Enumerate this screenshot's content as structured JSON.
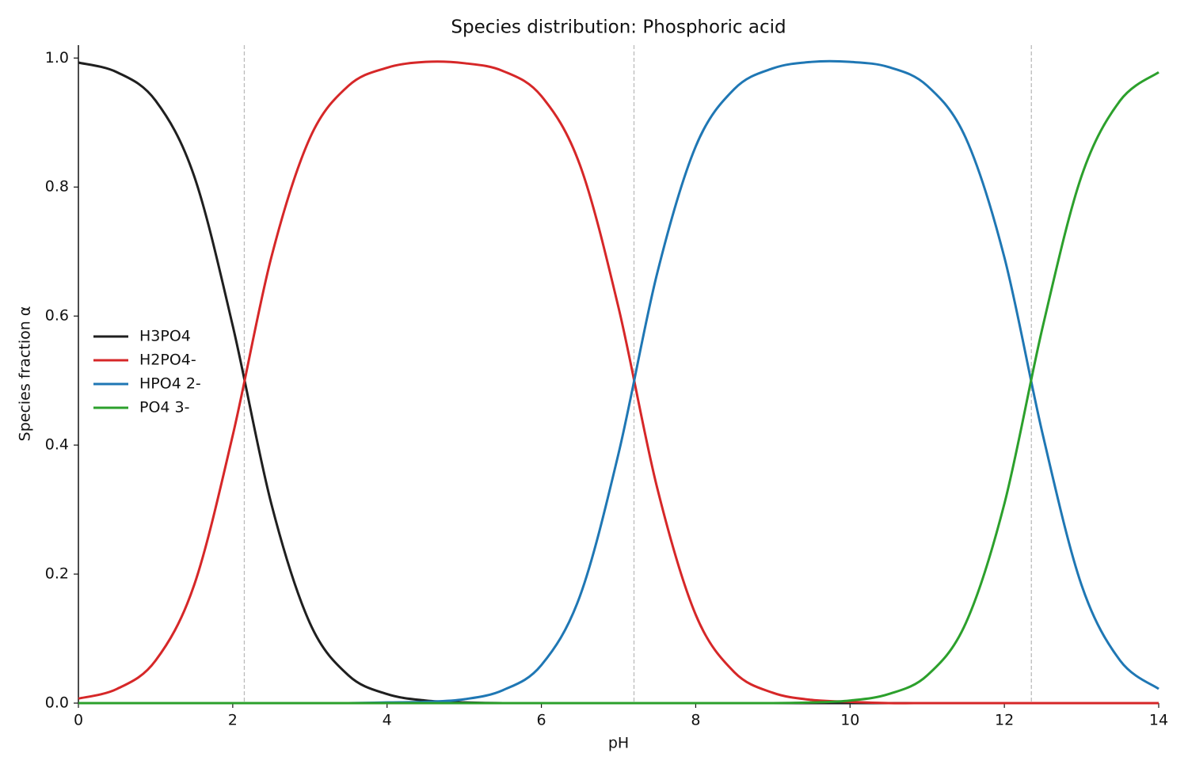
{
  "chart_data": {
    "type": "line",
    "title": "Species distribution: Phosphoric acid",
    "x_label": "pH",
    "y_label": "Species fraction α",
    "x": [
      0,
      0.5,
      1,
      1.5,
      2,
      2.5,
      3,
      3.5,
      4,
      4.5,
      5,
      5.5,
      6,
      6.5,
      7,
      7.5,
      8,
      8.5,
      9,
      9.5,
      10,
      10.5,
      11,
      11.5,
      12,
      12.5,
      13,
      13.5,
      14
    ],
    "series": [
      {
        "name": "H3PO4",
        "color": "#1f1f1f",
        "values": [
          0.993,
          0.978,
          0.934,
          0.817,
          0.585,
          0.309,
          0.124,
          0.043,
          0.014,
          0.004,
          0.001,
          0,
          0,
          0,
          0,
          0,
          0,
          0,
          0,
          0,
          0,
          0,
          0,
          0,
          0,
          0,
          0,
          0,
          0
        ]
      },
      {
        "name": "H2PO4-",
        "color": "#d62728",
        "values": [
          0.007,
          0.022,
          0.066,
          0.183,
          0.415,
          0.691,
          0.876,
          0.957,
          0.985,
          0.994,
          0.992,
          0.98,
          0.941,
          0.834,
          0.613,
          0.334,
          0.137,
          0.048,
          0.016,
          0.005,
          0.002,
          0,
          0,
          0,
          0,
          0,
          0,
          0,
          0
        ]
      },
      {
        "name": "HPO4 2-",
        "color": "#1f77b4",
        "values": [
          0,
          0,
          0,
          0,
          0,
          0,
          0,
          0,
          0.001,
          0.002,
          0.006,
          0.02,
          0.059,
          0.166,
          0.387,
          0.666,
          0.863,
          0.952,
          0.984,
          0.994,
          0.994,
          0.986,
          0.957,
          0.876,
          0.691,
          0.415,
          0.183,
          0.066,
          0.022
        ]
      },
      {
        "name": "PO4 3-",
        "color": "#2ca02c",
        "values": [
          0,
          0,
          0,
          0,
          0,
          0,
          0,
          0,
          0,
          0,
          0,
          0,
          0,
          0,
          0,
          0,
          0,
          0,
          0,
          0.001,
          0.004,
          0.014,
          0.043,
          0.124,
          0.309,
          0.585,
          0.817,
          0.934,
          0.978
        ]
      }
    ],
    "vlines": [
      2.15,
      7.2,
      12.35
    ],
    "xlim": [
      0,
      14
    ],
    "ylim": [
      0,
      1.02
    ],
    "xticks": [
      0,
      2,
      4,
      6,
      8,
      10,
      12,
      14
    ],
    "yticks": [
      {
        "value": 0,
        "label": "0.0"
      },
      {
        "value": 0.2,
        "label": "0.2"
      },
      {
        "value": 0.4,
        "label": "0.4"
      },
      {
        "value": 0.6,
        "label": "0.6"
      },
      {
        "value": 0.8,
        "label": "0.8"
      },
      {
        "value": 1,
        "label": "1.0"
      }
    ],
    "legend": "center left"
  }
}
